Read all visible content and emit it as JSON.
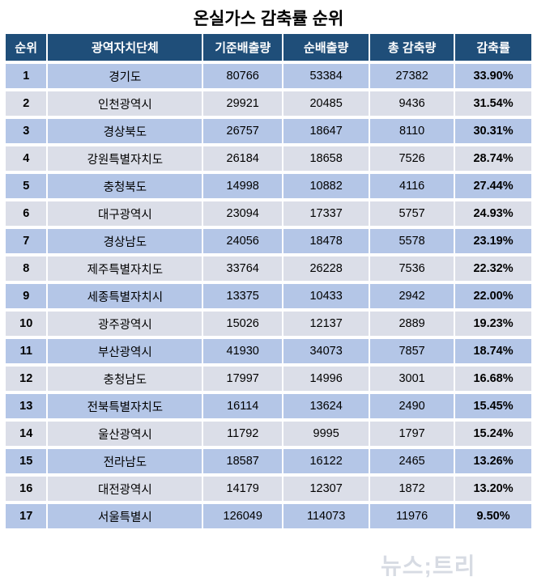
{
  "title": "온실가스 감축률 순위",
  "watermark": "뉴스;트리",
  "colors": {
    "header_bg": "#1F4E79",
    "header_text": "#FFFFFF",
    "row_odd_bg": "#B4C6E7",
    "row_even_bg": "#DBDEE8",
    "border": "#FFFFFF",
    "watermark_text": "#D7DBE3"
  },
  "table": {
    "columns": [
      "순위",
      "광역자치단체",
      "기준배출량",
      "순배출량",
      "총 감축량",
      "감축률"
    ],
    "column_keys": [
      "rank",
      "region",
      "base_emission",
      "net_emission",
      "total_reduction",
      "reduction_rate"
    ],
    "rows": [
      {
        "rank": 1,
        "region": "경기도",
        "base_emission": 80766,
        "net_emission": 53384,
        "total_reduction": 27382,
        "reduction_rate": "33.90%"
      },
      {
        "rank": 2,
        "region": "인천광역시",
        "base_emission": 29921,
        "net_emission": 20485,
        "total_reduction": 9436,
        "reduction_rate": "31.54%"
      },
      {
        "rank": 3,
        "region": "경상북도",
        "base_emission": 26757,
        "net_emission": 18647,
        "total_reduction": 8110,
        "reduction_rate": "30.31%"
      },
      {
        "rank": 4,
        "region": "강원특별자치도",
        "base_emission": 26184,
        "net_emission": 18658,
        "total_reduction": 7526,
        "reduction_rate": "28.74%"
      },
      {
        "rank": 5,
        "region": "충청북도",
        "base_emission": 14998,
        "net_emission": 10882,
        "total_reduction": 4116,
        "reduction_rate": "27.44%"
      },
      {
        "rank": 6,
        "region": "대구광역시",
        "base_emission": 23094,
        "net_emission": 17337,
        "total_reduction": 5757,
        "reduction_rate": "24.93%"
      },
      {
        "rank": 7,
        "region": "경상남도",
        "base_emission": 24056,
        "net_emission": 18478,
        "total_reduction": 5578,
        "reduction_rate": "23.19%"
      },
      {
        "rank": 8,
        "region": "제주특별자치도",
        "base_emission": 33764,
        "net_emission": 26228,
        "total_reduction": 7536,
        "reduction_rate": "22.32%"
      },
      {
        "rank": 9,
        "region": "세종특별자치시",
        "base_emission": 13375,
        "net_emission": 10433,
        "total_reduction": 2942,
        "reduction_rate": "22.00%"
      },
      {
        "rank": 10,
        "region": "광주광역시",
        "base_emission": 15026,
        "net_emission": 12137,
        "total_reduction": 2889,
        "reduction_rate": "19.23%"
      },
      {
        "rank": 11,
        "region": "부산광역시",
        "base_emission": 41930,
        "net_emission": 34073,
        "total_reduction": 7857,
        "reduction_rate": "18.74%"
      },
      {
        "rank": 12,
        "region": "충청남도",
        "base_emission": 17997,
        "net_emission": 14996,
        "total_reduction": 3001,
        "reduction_rate": "16.68%"
      },
      {
        "rank": 13,
        "region": "전북특별자치도",
        "base_emission": 16114,
        "net_emission": 13624,
        "total_reduction": 2490,
        "reduction_rate": "15.45%"
      },
      {
        "rank": 14,
        "region": "울산광역시",
        "base_emission": 11792,
        "net_emission": 9995,
        "total_reduction": 1797,
        "reduction_rate": "15.24%"
      },
      {
        "rank": 15,
        "region": "전라남도",
        "base_emission": 18587,
        "net_emission": 16122,
        "total_reduction": 2465,
        "reduction_rate": "13.26%"
      },
      {
        "rank": 16,
        "region": "대전광역시",
        "base_emission": 14179,
        "net_emission": 12307,
        "total_reduction": 1872,
        "reduction_rate": "13.20%"
      },
      {
        "rank": 17,
        "region": "서울특별시",
        "base_emission": 126049,
        "net_emission": 114073,
        "total_reduction": 11976,
        "reduction_rate": "9.50%"
      }
    ]
  },
  "chart_data": {
    "type": "table",
    "title": "온실가스 감축률 순위",
    "columns": [
      "순위",
      "광역자치단체",
      "기준배출량",
      "순배출량",
      "총 감축량",
      "감축률"
    ],
    "categories": [
      "경기도",
      "인천광역시",
      "경상북도",
      "강원특별자치도",
      "충청북도",
      "대구광역시",
      "경상남도",
      "제주특별자치도",
      "세종특별자치시",
      "광주광역시",
      "부산광역시",
      "충청남도",
      "전북특별자치도",
      "울산광역시",
      "전라남도",
      "대전광역시",
      "서울특별시"
    ],
    "series": [
      {
        "name": "기준배출량",
        "values": [
          80766,
          29921,
          26757,
          26184,
          14998,
          23094,
          24056,
          33764,
          13375,
          15026,
          41930,
          17997,
          16114,
          11792,
          18587,
          14179,
          126049
        ]
      },
      {
        "name": "순배출량",
        "values": [
          53384,
          20485,
          18647,
          18658,
          10882,
          17337,
          18478,
          26228,
          10433,
          12137,
          34073,
          14996,
          13624,
          9995,
          16122,
          12307,
          114073
        ]
      },
      {
        "name": "총 감축량",
        "values": [
          27382,
          9436,
          8110,
          7526,
          4116,
          5757,
          5578,
          7536,
          2942,
          2889,
          7857,
          3001,
          2490,
          1797,
          2465,
          1872,
          11976
        ]
      },
      {
        "name": "감축률(%)",
        "values": [
          33.9,
          31.54,
          30.31,
          28.74,
          27.44,
          24.93,
          23.19,
          22.32,
          22.0,
          19.23,
          18.74,
          16.68,
          15.45,
          15.24,
          13.26,
          13.2,
          9.5
        ]
      }
    ]
  }
}
